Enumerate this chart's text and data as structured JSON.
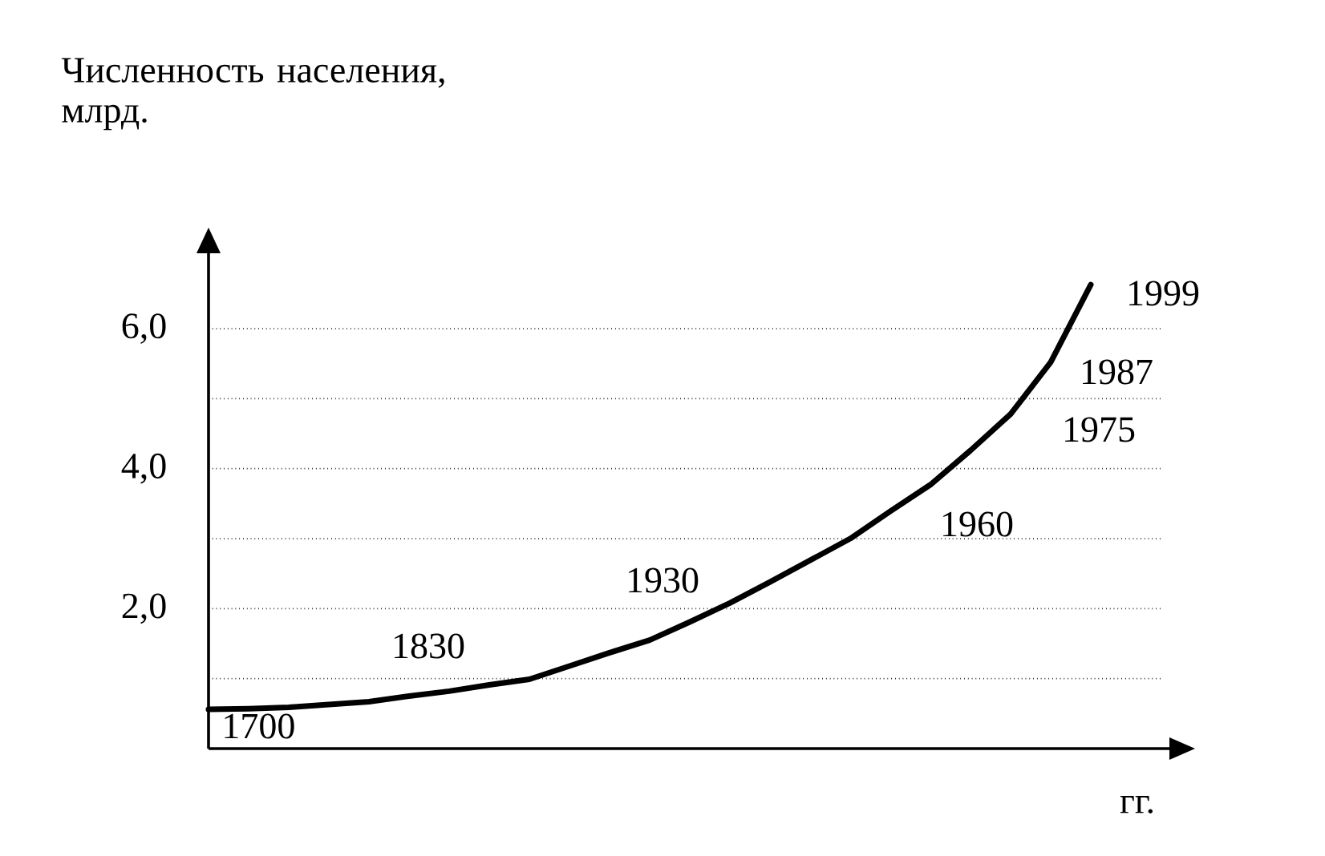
{
  "chart_data": {
    "type": "line",
    "title": "Численность населения, млрд.",
    "xlabel": "гг.",
    "categories": [
      null,
      null,
      null,
      null,
      null,
      null,
      null,
      null,
      null,
      null,
      null,
      null,
      null,
      null,
      null,
      null,
      null,
      null,
      null,
      null,
      null,
      null,
      null
    ],
    "series": [
      {
        "color": "#000000",
        "values": [
          0.56,
          0.57,
          0.59,
          0.63,
          0.67,
          0.75,
          0.82,
          0.91,
          0.99,
          1.18,
          1.37,
          1.55,
          1.81,
          2.08,
          2.38,
          2.69,
          3.0,
          3.39,
          3.77,
          4.26,
          4.78,
          5.52,
          6.63
        ]
      }
    ],
    "ylim": [
      0,
      7.1
    ],
    "yticks": [
      {
        "value": 1,
        "label": null
      },
      {
        "value": 2,
        "label": "2,0"
      },
      {
        "value": 3,
        "label": null
      },
      {
        "value": 4,
        "label": "4,0"
      },
      {
        "value": 5,
        "label": null
      },
      {
        "value": 6,
        "label": "6,0"
      }
    ],
    "grid": "y",
    "annotations": [
      "1700",
      "1830",
      "1930",
      "1960",
      "1975",
      "1987",
      "1999"
    ]
  }
}
